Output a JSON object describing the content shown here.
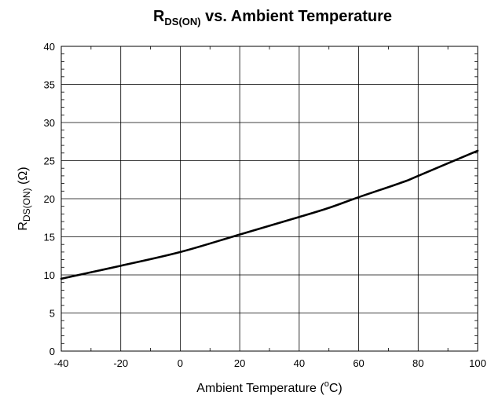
{
  "chart_data": {
    "type": "line",
    "title": {
      "main": "R",
      "sub": "DS(ON)",
      "rest": " vs. Ambient Temperature"
    },
    "xlabel": {
      "pre": "Ambient Temperature (",
      "sup": "o",
      "post": "C)"
    },
    "ylabel": {
      "main": "R",
      "sub": "DS(ON)",
      "rest": " (Ω)"
    },
    "xlim": [
      -40,
      100
    ],
    "ylim": [
      0,
      40
    ],
    "x_ticks": [
      "-40",
      "-20",
      "0",
      "20",
      "40",
      "60",
      "80",
      "100"
    ],
    "y_ticks": [
      "0",
      "5",
      "10",
      "15",
      "20",
      "25",
      "30",
      "35",
      "40"
    ],
    "grid": true,
    "series": [
      {
        "color": "#000000",
        "x": [
          -40,
          -20,
          0,
          20,
          40,
          50,
          60,
          75,
          80,
          100
        ],
        "y": [
          9.5,
          11.2,
          13.0,
          15.3,
          17.6,
          18.8,
          20.2,
          22.2,
          23.0,
          26.3
        ]
      }
    ]
  }
}
